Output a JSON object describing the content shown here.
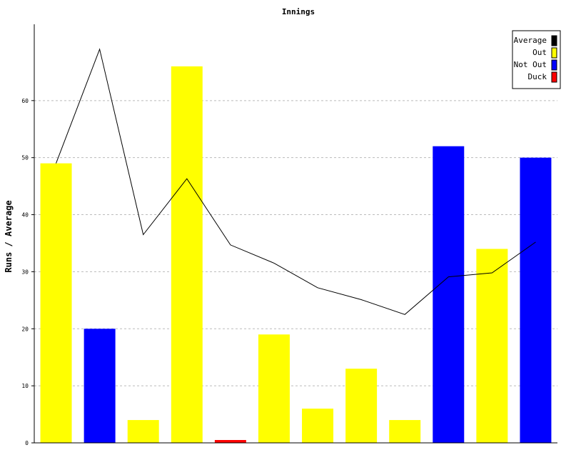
{
  "chart_data": {
    "type": "bar",
    "title": "Innings",
    "ylabel": "Runs / Average",
    "xlabel": "",
    "ylim": [
      0,
      73
    ],
    "yticks": [
      0,
      10,
      20,
      30,
      40,
      50,
      60
    ],
    "grid": true,
    "legend_position": "top-right",
    "bars": [
      {
        "value": 49,
        "type": "Out"
      },
      {
        "value": 20,
        "type": "Not Out"
      },
      {
        "value": 4,
        "type": "Out"
      },
      {
        "value": 66,
        "type": "Out"
      },
      {
        "value": 0.5,
        "type": "Duck"
      },
      {
        "value": 19,
        "type": "Out"
      },
      {
        "value": 6,
        "type": "Out"
      },
      {
        "value": 13,
        "type": "Out"
      },
      {
        "value": 4,
        "type": "Out"
      },
      {
        "value": 52,
        "type": "Not Out"
      },
      {
        "value": 34,
        "type": "Out"
      },
      {
        "value": 50,
        "type": "Not Out"
      }
    ],
    "average": [
      49,
      69,
      36.5,
      46.3,
      34.7,
      31.5,
      27.2,
      25.1,
      22.5,
      29.1,
      29.8,
      35.2
    ],
    "legend": [
      {
        "name": "Average",
        "color": "#000000"
      },
      {
        "name": "Out",
        "color": "#ffff00"
      },
      {
        "name": "Not Out",
        "color": "#0000ff"
      },
      {
        "name": "Duck",
        "color": "#ff0000"
      }
    ]
  }
}
